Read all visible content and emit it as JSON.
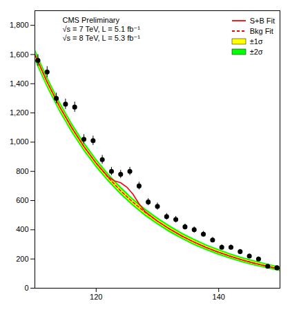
{
  "chart_data": {
    "type": "scatter",
    "annotations": [
      "CMS Preliminary",
      "√s = 7 TeV, L = 5.1 fb⁻¹",
      "√s = 8 TeV, L = 5.3 fb⁻¹"
    ],
    "x": [
      110.5,
      112,
      113.5,
      115,
      116.5,
      118,
      119.5,
      121,
      122.5,
      124,
      125.5,
      127,
      128.5,
      130,
      131.5,
      133,
      134.5,
      136,
      137.5,
      139,
      140.5,
      142,
      143.5,
      145,
      146.5,
      148,
      149.5
    ],
    "values": [
      1560,
      1480,
      1300,
      1260,
      1240,
      1020,
      1010,
      880,
      800,
      780,
      800,
      700,
      590,
      560,
      490,
      470,
      420,
      400,
      370,
      330,
      280,
      280,
      250,
      220,
      200,
      150,
      140
    ],
    "errors": [
      40,
      38,
      36,
      35,
      35,
      32,
      32,
      30,
      28,
      28,
      28,
      26,
      24,
      24,
      22,
      22,
      20,
      20,
      19,
      18,
      17,
      17,
      16,
      15,
      14,
      12,
      12
    ],
    "color": "#000000",
    "marker": "circle",
    "series": [
      {
        "name": "S+B Fit",
        "type": "line",
        "color": "#ff0000",
        "line_style": "solid",
        "x": [
          110,
          112,
          114,
          116,
          118,
          120,
          122,
          123,
          124,
          125,
          126,
          127,
          128,
          130,
          132,
          134,
          136,
          138,
          140,
          142,
          144,
          146,
          148,
          150
        ],
        "values": [
          1600,
          1412,
          1246,
          1100,
          970,
          856,
          761,
          735,
          722,
          692,
          644,
          578,
          524,
          459,
          405,
          357,
          315,
          278,
          246,
          217,
          191,
          169,
          149,
          131
        ]
      },
      {
        "name": "Bkg Fit",
        "type": "line",
        "color": "#ff0000",
        "line_style": "dashed",
        "x": [
          110,
          112,
          114,
          116,
          118,
          120,
          122,
          124,
          126,
          128,
          130,
          132,
          134,
          136,
          138,
          140,
          142,
          144,
          146,
          148,
          150
        ],
        "values": [
          1600,
          1412,
          1246,
          1100,
          970,
          856,
          756,
          667,
          589,
          519,
          459,
          405,
          357,
          315,
          278,
          246,
          217,
          191,
          169,
          149,
          131
        ]
      },
      {
        "name": "±1σ",
        "type": "band",
        "color": "#ffff00",
        "x": [
          110,
          112,
          114,
          116,
          118,
          120,
          122,
          124,
          126,
          128,
          130,
          132,
          134,
          136,
          138,
          140,
          142,
          144,
          146,
          148,
          150
        ],
        "lower": [
          1580,
          1393,
          1228,
          1083,
          954,
          841,
          742,
          653,
          576,
          506,
          447,
          393,
          346,
          304,
          268,
          236,
          208,
          182,
          160,
          141,
          123
        ],
        "upper": [
          1620,
          1431,
          1264,
          1117,
          986,
          871,
          770,
          681,
          602,
          532,
          471,
          417,
          368,
          326,
          288,
          256,
          226,
          200,
          178,
          157,
          139
        ]
      },
      {
        "name": "±2σ",
        "type": "band",
        "color": "#00ff00",
        "x": [
          110,
          112,
          114,
          116,
          118,
          120,
          122,
          124,
          126,
          128,
          130,
          132,
          134,
          136,
          138,
          140,
          142,
          144,
          146,
          148,
          150
        ],
        "lower": [
          1560,
          1374,
          1210,
          1066,
          938,
          826,
          728,
          639,
          563,
          493,
          435,
          381,
          335,
          293,
          258,
          226,
          199,
          173,
          151,
          133,
          115
        ],
        "upper": [
          1640,
          1450,
          1282,
          1134,
          1002,
          886,
          784,
          695,
          615,
          545,
          483,
          429,
          379,
          337,
          298,
          266,
          235,
          209,
          187,
          165,
          147
        ]
      }
    ],
    "xlim": [
      110,
      150
    ],
    "xticks": [
      120,
      140
    ],
    "ylim": [
      0,
      1900
    ],
    "yticks": [
      0,
      200,
      400,
      600,
      800,
      1000,
      1200,
      1400,
      1600,
      1800
    ],
    "grid": false,
    "legend": "top-right"
  }
}
